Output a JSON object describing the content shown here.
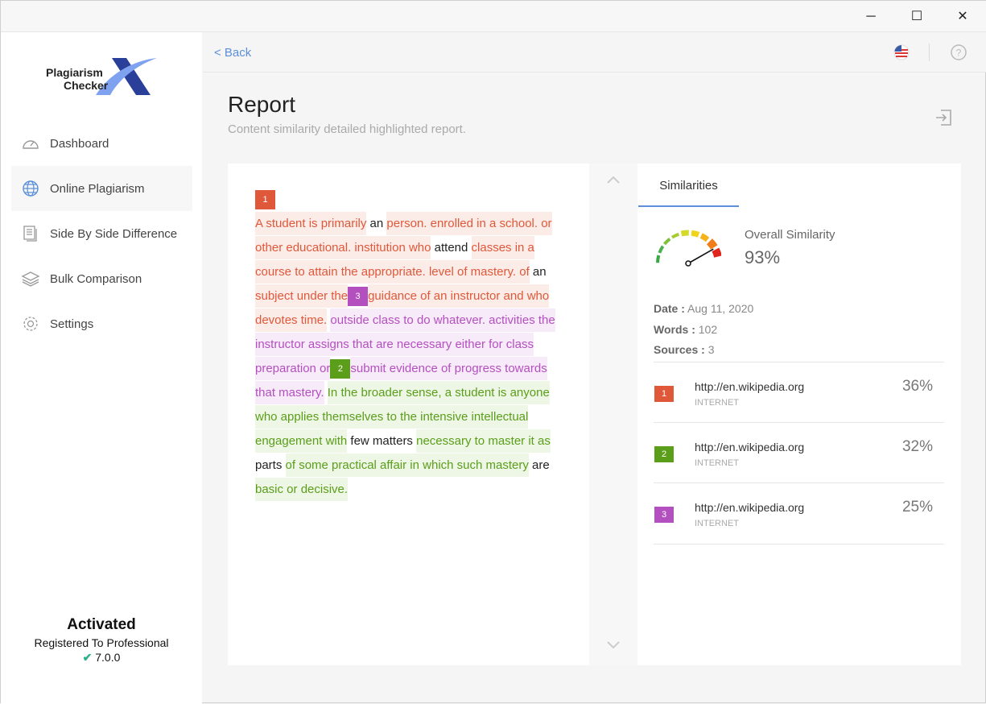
{
  "window": {
    "minimize": "─",
    "maximize": "☐",
    "close": "✕"
  },
  "logo": {
    "line1": "Plagiarism",
    "line2": "Checker",
    "mark": "X"
  },
  "sidebar": {
    "items": [
      {
        "label": "Dashboard",
        "icon": "gauge-icon"
      },
      {
        "label": "Online Plagiarism",
        "icon": "globe-icon",
        "active": true
      },
      {
        "label": "Side By Side Difference",
        "icon": "documents-icon"
      },
      {
        "label": "Bulk Comparison",
        "icon": "layers-icon"
      },
      {
        "label": "Settings",
        "icon": "gear-icon"
      }
    ]
  },
  "license": {
    "status": "Activated",
    "registered": "Registered To Professional",
    "version": "7.0.0"
  },
  "topbar": {
    "back": "< Back"
  },
  "page": {
    "title": "Report",
    "subtitle": "Content similarity detailed highlighted report."
  },
  "colors": {
    "source1": "#e0583a",
    "source2": "#5a9e1a",
    "source3": "#b44fc0",
    "accent": "#5b8fd9"
  },
  "report": {
    "segments": [
      {
        "badge": "1",
        "src": 1
      },
      {
        "t": "A student is primarily",
        "src": 1
      },
      {
        "t": " an "
      },
      {
        "t": "person. enrolled in a school. or other educational. institution who",
        "src": 1
      },
      {
        "t": " attend "
      },
      {
        "t": "classes in a course to attain the appropriate. level of mastery. of",
        "src": 1
      },
      {
        "t": " an "
      },
      {
        "t": "subject under the",
        "src": 1
      },
      {
        "badge": "3",
        "src": 3
      },
      {
        "t": "guidance of an instructor and who devotes time.",
        "src": 1
      },
      {
        "t": " "
      },
      {
        "t": "outside class to do whatever. activities the instructor assigns that are necessary either for class preparation or",
        "src": 3
      },
      {
        "badge": "2",
        "src": 2
      },
      {
        "t": "submit evidence of progress towards that mastery.",
        "src": 3
      },
      {
        "t": " "
      },
      {
        "t": "In the broader sense, a student is anyone who applies themselves to the intensive intellectual engagement with",
        "src": 2
      },
      {
        "t": " few matters "
      },
      {
        "t": "necessary to master it as",
        "src": 2
      },
      {
        "t": " parts "
      },
      {
        "t": "of some practical affair in which such mastery",
        "src": 2
      },
      {
        "t": " are "
      },
      {
        "t": "basic or decisive.",
        "src": 2
      }
    ]
  },
  "similarities": {
    "tab": "Similarities",
    "overall_label": "Overall Similarity",
    "overall": "93%",
    "overall_value": 93,
    "date_label": "Date :",
    "date": "Aug 11, 2020",
    "words_label": "Words :",
    "words": "102",
    "sources_label": "Sources :",
    "sources": "3",
    "list": [
      {
        "n": "1",
        "url": "http://en.wikipedia.org",
        "kind": "INTERNET",
        "pct": "36%"
      },
      {
        "n": "2",
        "url": "http://en.wikipedia.org",
        "kind": "INTERNET",
        "pct": "32%"
      },
      {
        "n": "3",
        "url": "http://en.wikipedia.org",
        "kind": "INTERNET",
        "pct": "25%"
      }
    ]
  }
}
